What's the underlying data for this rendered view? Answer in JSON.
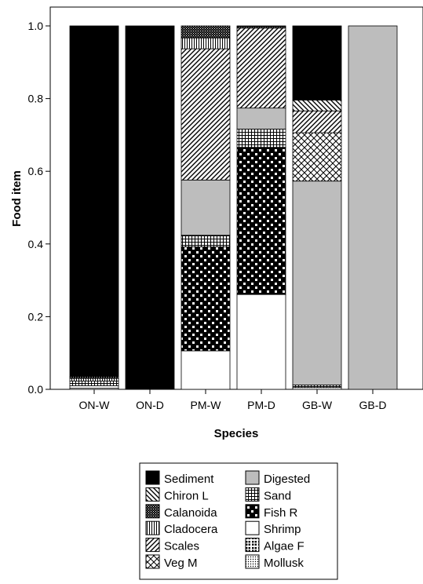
{
  "chart_data": {
    "type": "bar",
    "stacked": true,
    "xlabel": "Species",
    "ylabel": "Food item",
    "ylim": [
      0,
      1
    ],
    "yticks": [
      "0.0",
      "0.2",
      "0.4",
      "0.6",
      "0.8",
      "1.0"
    ],
    "grid": false,
    "legend_position": "bottom",
    "categories": [
      "ON-W",
      "ON-D",
      "PM-W",
      "PM-D",
      "GB-W",
      "GB-D"
    ],
    "series": [
      {
        "name": "Algae F",
        "pattern": "checker-bold",
        "values": [
          0,
          0,
          0,
          0,
          0,
          0
        ]
      },
      {
        "name": "Mollusk",
        "pattern": "dots",
        "values": [
          0.003,
          0,
          0,
          0,
          0.005,
          0
        ]
      },
      {
        "name": "Shrimp",
        "pattern": "white",
        "values": [
          0.007,
          0,
          0.106,
          0.261,
          0,
          0
        ]
      },
      {
        "name": "Fish R",
        "pattern": "checker",
        "values": [
          0,
          0,
          0.286,
          0.405,
          0,
          0
        ]
      },
      {
        "name": "Sand",
        "pattern": "grid",
        "values": [
          0.013,
          0,
          0.032,
          0.05,
          0.007,
          0
        ]
      },
      {
        "name": "Digested",
        "pattern": "gray",
        "values": [
          0,
          0,
          0.152,
          0.058,
          0.561,
          1
        ]
      },
      {
        "name": "Veg M",
        "pattern": "crosshatch",
        "values": [
          0,
          0,
          0,
          0,
          0.133,
          0
        ]
      },
      {
        "name": "Scales",
        "pattern": "diag-fwd",
        "values": [
          0,
          0,
          0.361,
          0.22,
          0.06,
          0
        ]
      },
      {
        "name": "Chiron L",
        "pattern": "diag-back",
        "values": [
          0,
          0,
          0,
          0,
          0.03,
          0
        ]
      },
      {
        "name": "Cladocera",
        "pattern": "vlines",
        "values": [
          0.007,
          0,
          0.03,
          0,
          0,
          0
        ]
      },
      {
        "name": "Calanoida",
        "pattern": "dense-check",
        "values": [
          0.005,
          0,
          0.033,
          0.004,
          0,
          0
        ]
      },
      {
        "name": "Sediment",
        "pattern": "black",
        "values": [
          0.965,
          1,
          0,
          0.002,
          0.204,
          0
        ]
      }
    ],
    "legend": [
      [
        "Sediment",
        "Digested"
      ],
      [
        "Chiron L",
        "Sand"
      ],
      [
        "Calanoida",
        "Fish R"
      ],
      [
        "Cladocera",
        "Shrimp"
      ],
      [
        "Scales",
        "Algae F"
      ],
      [
        "Veg M",
        "Mollusk"
      ]
    ]
  }
}
